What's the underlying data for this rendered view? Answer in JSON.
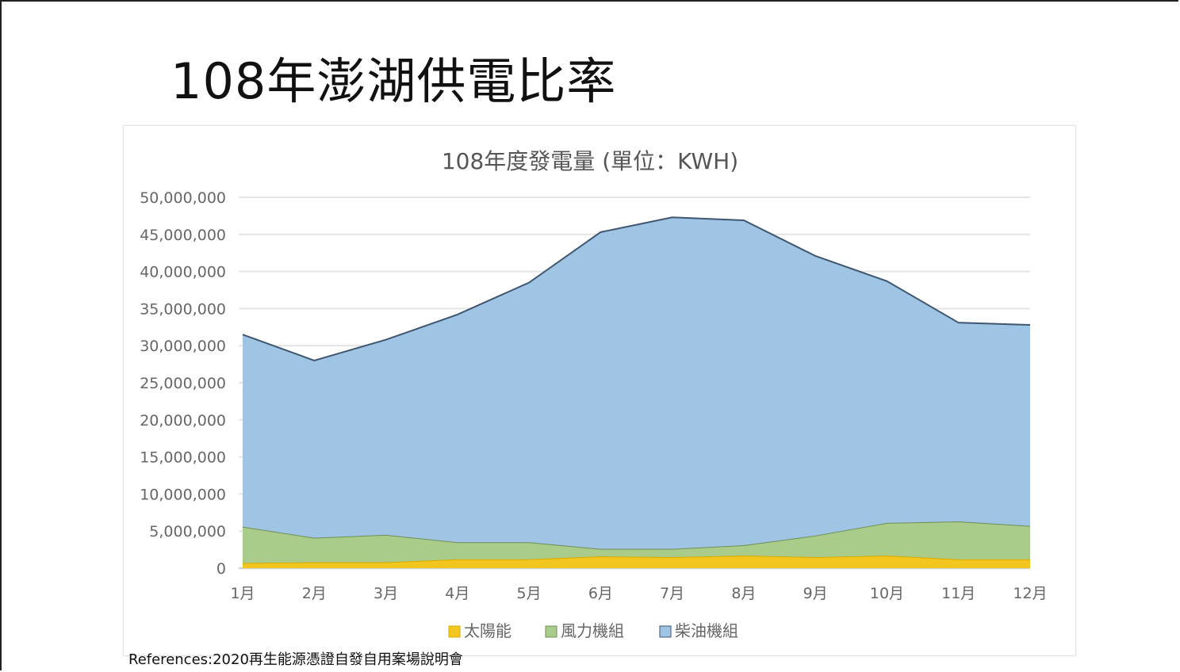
{
  "slide": {
    "title": "108年澎湖供電比率",
    "reference": "References:2020再生能源憑證自發自用案場說明會"
  },
  "chart_data": {
    "type": "area",
    "stacked": true,
    "title": "108年度發電量 (單位：KWH)",
    "xlabel": "",
    "ylabel": "",
    "categories": [
      "1月",
      "2月",
      "3月",
      "4月",
      "5月",
      "6月",
      "7月",
      "8月",
      "9月",
      "10月",
      "11月",
      "12月"
    ],
    "ylim": [
      0,
      50000000
    ],
    "yticks": [
      0,
      5000000,
      10000000,
      15000000,
      20000000,
      25000000,
      30000000,
      35000000,
      40000000,
      45000000,
      50000000
    ],
    "ytick_labels": [
      "0",
      "5,000,000",
      "10,000,000",
      "15,000,000",
      "20,000,000",
      "25,000,000",
      "30,000,000",
      "35,000,000",
      "40,000,000",
      "45,000,000",
      "50,000,000"
    ],
    "grid": true,
    "legend_position": "bottom",
    "series": [
      {
        "name": "太陽能",
        "color": "#f2c61f",
        "values": [
          700000,
          800000,
          800000,
          1200000,
          1200000,
          1600000,
          1500000,
          1700000,
          1500000,
          1700000,
          1200000,
          1200000
        ]
      },
      {
        "name": "風力機組",
        "color": "#a9cc8a",
        "values": [
          4900000,
          3300000,
          3700000,
          2300000,
          2300000,
          1000000,
          1100000,
          1400000,
          2900000,
          4400000,
          5100000,
          4500000
        ]
      },
      {
        "name": "柴油機組",
        "color": "#9fc4e4",
        "values": [
          25900000,
          23900000,
          26300000,
          30700000,
          35000000,
          42700000,
          44700000,
          43800000,
          37700000,
          32600000,
          26800000,
          27100000
        ]
      }
    ]
  }
}
